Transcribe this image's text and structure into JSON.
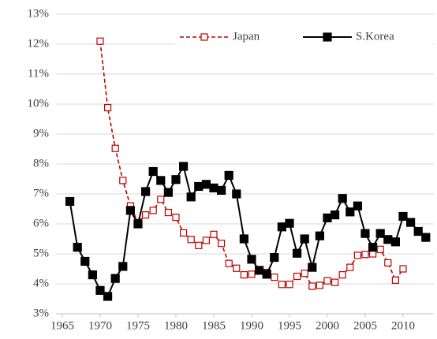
{
  "chart_data": {
    "type": "line",
    "x": [
      1966,
      1967,
      1968,
      1969,
      1970,
      1971,
      1972,
      1973,
      1974,
      1975,
      1976,
      1977,
      1978,
      1979,
      1980,
      1981,
      1982,
      1983,
      1984,
      1985,
      1986,
      1987,
      1988,
      1989,
      1990,
      1991,
      1992,
      1993,
      1994,
      1995,
      1996,
      1997,
      1998,
      1999,
      2000,
      2001,
      2002,
      2003,
      2004,
      2005,
      2006,
      2007,
      2008,
      2009,
      2010,
      2011,
      2012,
      2013
    ],
    "series": [
      {
        "name": "Japan",
        "color": "#c00000",
        "dashed": true,
        "marker": "open-square",
        "values": [
          null,
          null,
          null,
          null,
          12.1,
          9.88,
          8.52,
          7.45,
          6.6,
          6.05,
          6.3,
          6.45,
          6.82,
          6.38,
          6.22,
          5.7,
          5.48,
          5.28,
          5.45,
          5.65,
          5.35,
          4.68,
          4.52,
          4.3,
          4.32,
          4.45,
          4.38,
          4.22,
          3.98,
          3.98,
          4.25,
          4.35,
          3.92,
          3.95,
          4.1,
          4.05,
          4.3,
          4.55,
          4.95,
          4.98,
          5.0,
          5.15,
          4.7,
          4.12,
          4.5,
          null,
          null,
          null
        ]
      },
      {
        "name": "S.Korea",
        "color": "#000000",
        "dashed": false,
        "marker": "filled-square",
        "values": [
          6.75,
          5.22,
          4.75,
          4.3,
          3.78,
          3.58,
          4.18,
          4.58,
          6.45,
          6.0,
          7.08,
          7.75,
          7.45,
          7.05,
          7.48,
          7.92,
          6.9,
          7.25,
          7.32,
          7.2,
          7.12,
          7.62,
          7.0,
          5.5,
          4.82,
          4.45,
          4.32,
          4.88,
          5.9,
          6.02,
          5.02,
          5.5,
          4.55,
          5.6,
          6.2,
          6.3,
          6.85,
          6.4,
          6.6,
          5.68,
          5.22,
          5.68,
          5.48,
          5.4,
          6.25,
          6.05,
          5.75,
          5.55
        ]
      }
    ],
    "xlim": [
      1964.2,
      2014.0
    ],
    "xticks": [
      1965,
      1970,
      1975,
      1980,
      1985,
      1990,
      1995,
      2000,
      2005,
      2010
    ],
    "ylim": [
      3,
      13
    ],
    "yticks": [
      {
        "value": 3,
        "label": "3%"
      },
      {
        "value": 4,
        "label": "4%"
      },
      {
        "value": 5,
        "label": "5%"
      },
      {
        "value": 6,
        "label": "6%"
      },
      {
        "value": 7,
        "label": "7%"
      },
      {
        "value": 8,
        "label": "8%"
      },
      {
        "value": 9,
        "label": "9%"
      },
      {
        "value": 10,
        "label": "10%"
      },
      {
        "value": 11,
        "label": "11%"
      },
      {
        "value": 12,
        "label": "12%"
      },
      {
        "value": 13,
        "label": "13%"
      }
    ],
    "grid": true,
    "legend": "top-right"
  }
}
